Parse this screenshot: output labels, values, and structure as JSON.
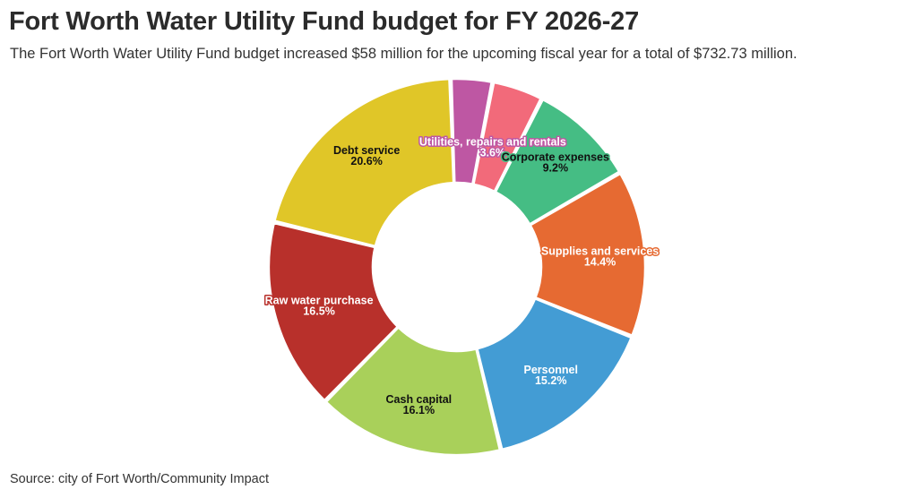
{
  "header": {
    "title": "Fort Worth Water Utility Fund budget for FY 2026-27",
    "subtitle": "The Fort Worth Water Utility Fund budget increased $58 million for the upcoming fiscal year for a total of $732.73 million."
  },
  "footer": {
    "source": "Source: city of Fort Worth/Community Impact"
  },
  "chart_data": {
    "type": "pie",
    "donut": true,
    "title": "Fort Worth Water Utility Fund budget for FY 2026-27",
    "unit": "%",
    "slices": [
      {
        "name": "Utilities, repairs and rentals",
        "value": 3.6,
        "label": "3.6%",
        "color": "#be57a3",
        "text_color": "#ffffff",
        "halo": "#be57a3"
      },
      {
        "name": "",
        "value": 4.4,
        "label": "",
        "color": "#f26a7a",
        "text_color": "#ffffff",
        "halo": "#f26a7a"
      },
      {
        "name": "Corporate expenses",
        "value": 9.2,
        "label": "9.2%",
        "color": "#45bd84",
        "text_color": "#111111",
        "halo": "#45bd84"
      },
      {
        "name": "Supplies and services",
        "value": 14.4,
        "label": "14.4%",
        "color": "#e66a32",
        "text_color": "#ffffff",
        "halo": "#e66a32"
      },
      {
        "name": "Personnel",
        "value": 15.2,
        "label": "15.2%",
        "color": "#439cd4",
        "text_color": "#ffffff",
        "halo": "#439cd4"
      },
      {
        "name": "Cash capital",
        "value": 16.1,
        "label": "16.1%",
        "color": "#a9d05a",
        "text_color": "#111111",
        "halo": "#a9d05a"
      },
      {
        "name": "Raw water purchase",
        "value": 16.5,
        "label": "16.5%",
        "color": "#b8302b",
        "text_color": "#ffffff",
        "halo": "#b8302b"
      },
      {
        "name": "Debt service",
        "value": 20.6,
        "label": "20.6%",
        "color": "#e0c628",
        "text_color": "#111111",
        "halo": "#e0c628"
      }
    ]
  }
}
